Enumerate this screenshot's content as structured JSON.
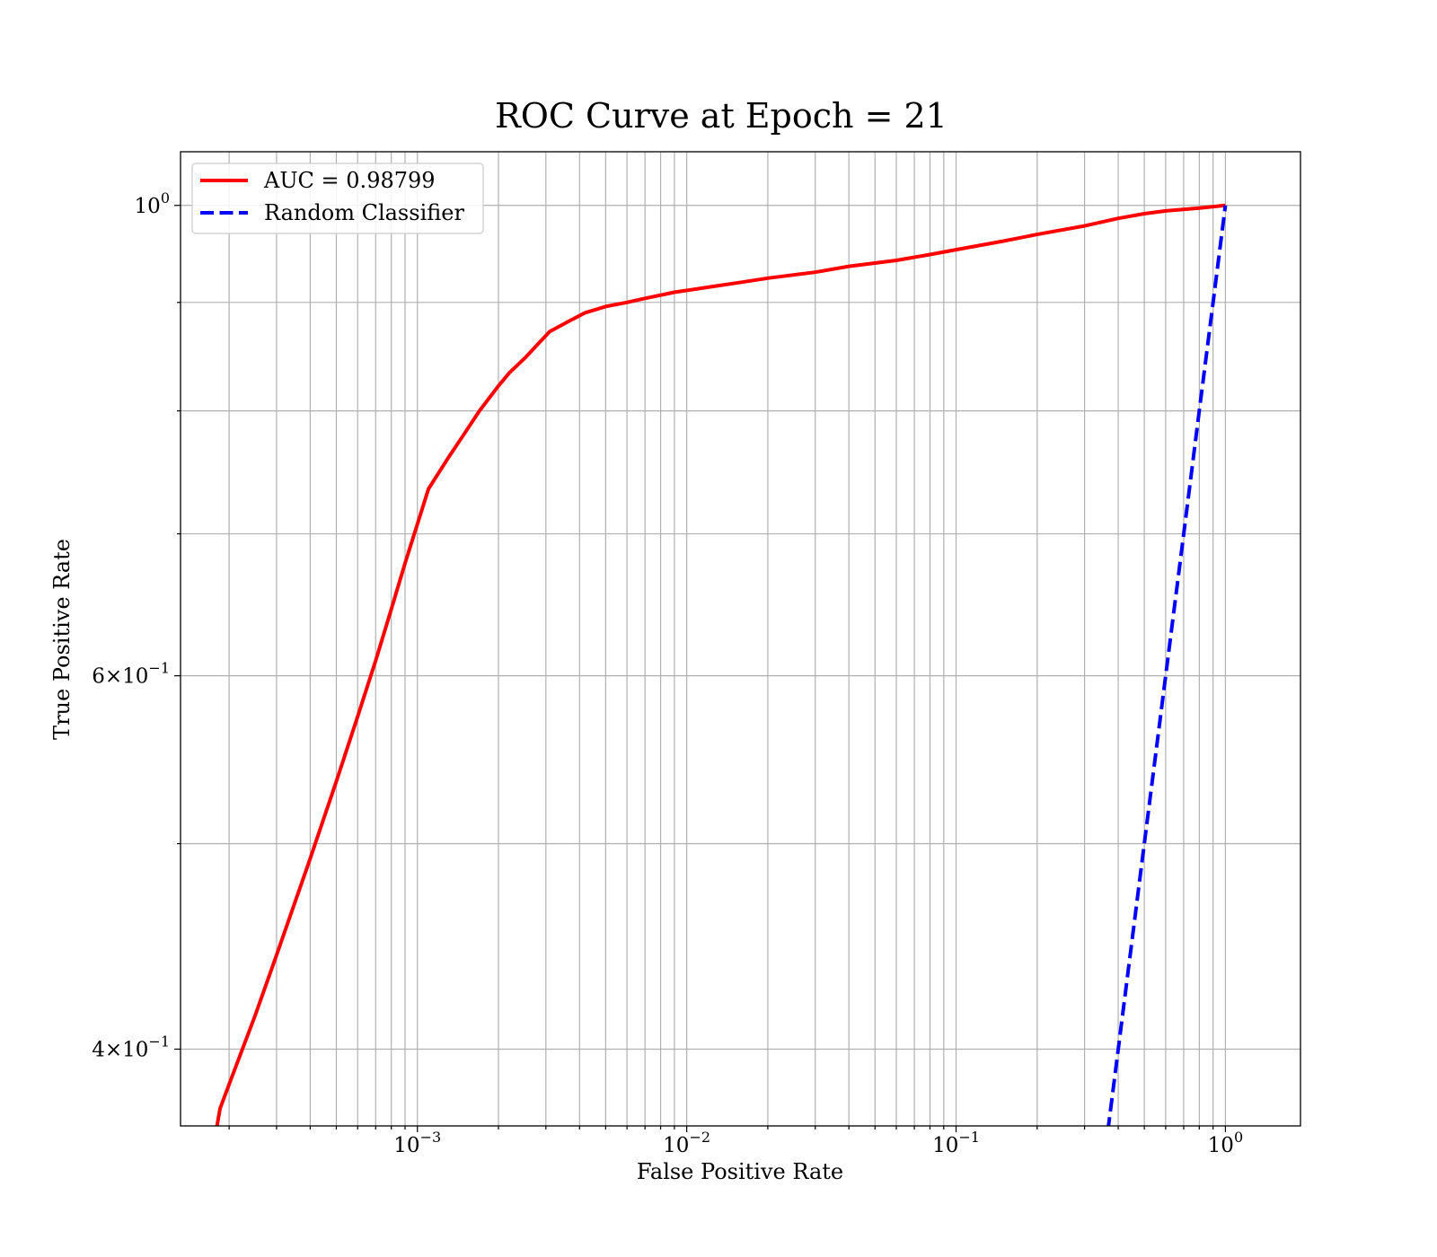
{
  "chart_data": {
    "type": "line",
    "title": "ROC Curve at Epoch = 21",
    "xlabel": "False Positive Rate",
    "ylabel": "True Positive Rate",
    "x_scale": "log",
    "y_scale": "log",
    "xlim": [
      0.000132,
      1.9
    ],
    "ylim": [
      0.368,
      1.06
    ],
    "grid": true,
    "legend_position": "top-left",
    "x_ticks": [
      {
        "value": 0.001,
        "base": "10",
        "exp": "−3"
      },
      {
        "value": 0.01,
        "base": "10",
        "exp": "−2"
      },
      {
        "value": 0.1,
        "base": "10",
        "exp": "−1"
      },
      {
        "value": 1,
        "base": "10",
        "exp": "0"
      }
    ],
    "y_ticks": [
      {
        "value": 1,
        "mant": "",
        "base": "10",
        "exp": "0"
      },
      {
        "value": 0.6,
        "mant": "6×",
        "base": "10",
        "exp": "−1"
      },
      {
        "value": 0.4,
        "mant": "4×",
        "base": "10",
        "exp": "−1"
      }
    ],
    "y_minor_ticks": [
      0.9,
      0.8,
      0.7,
      0.5
    ],
    "series": [
      {
        "name": "AUC = 0.98799",
        "color": "#ff0000",
        "style": "solid",
        "x": [
          0.000175,
          0.000185,
          0.0002,
          0.00025,
          0.0003,
          0.0004,
          0.0005,
          0.0006,
          0.0007,
          0.0008,
          0.0009,
          0.0011,
          0.0013,
          0.0015,
          0.0017,
          0.002,
          0.0022,
          0.0025,
          0.0028,
          0.0031,
          0.0036,
          0.0042,
          0.005,
          0.006,
          0.007,
          0.009,
          0.012,
          0.016,
          0.02,
          0.03,
          0.04,
          0.06,
          0.08,
          0.1,
          0.15,
          0.2,
          0.3,
          0.4,
          0.5,
          0.6,
          0.8,
          1.0
        ],
        "y": [
          0.36,
          0.375,
          0.385,
          0.415,
          0.443,
          0.492,
          0.535,
          0.574,
          0.61,
          0.645,
          0.678,
          0.735,
          0.76,
          0.781,
          0.8,
          0.822,
          0.834,
          0.847,
          0.86,
          0.872,
          0.881,
          0.89,
          0.896,
          0.9,
          0.904,
          0.91,
          0.915,
          0.92,
          0.924,
          0.93,
          0.936,
          0.942,
          0.948,
          0.953,
          0.962,
          0.969,
          0.978,
          0.986,
          0.991,
          0.994,
          0.997,
          1.0
        ]
      },
      {
        "name": "Random Classifier",
        "color": "#0000ff",
        "style": "dashed",
        "x": [
          0.33,
          0.4,
          0.5,
          0.6,
          0.7,
          0.8,
          0.9,
          1.0
        ],
        "y": [
          0.33,
          0.4,
          0.5,
          0.6,
          0.7,
          0.8,
          0.9,
          1.0
        ]
      }
    ]
  }
}
